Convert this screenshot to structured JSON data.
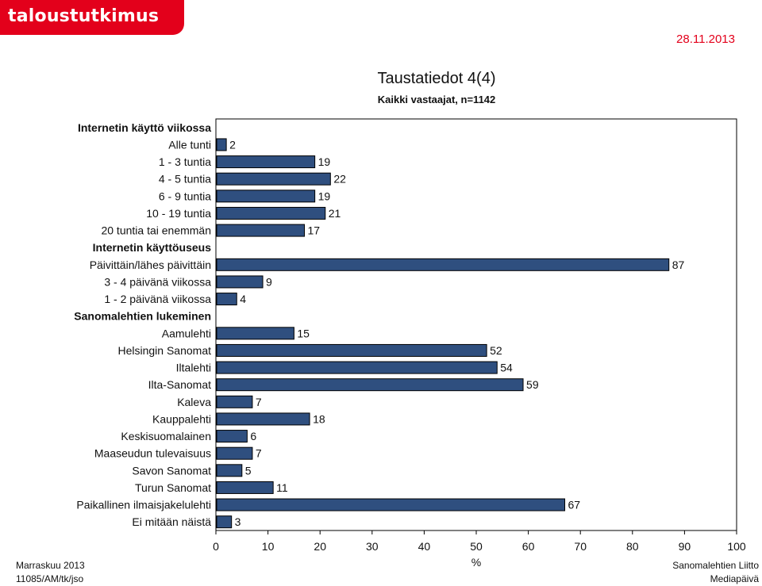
{
  "header": {
    "logo_text": "taloustutkimus oy",
    "date": "28.11.2013"
  },
  "footer": {
    "left_line1": "Marraskuu 2013",
    "left_line2": "11085/AM/tk/jso",
    "right_line1": "Sanomalehtien Liitto",
    "right_line2": "Mediapäivä"
  },
  "colors": {
    "bar_fill": "#2f4f7f",
    "bar_stroke": "#000000",
    "brand_red": "#e3001b"
  },
  "chart_data": {
    "type": "bar",
    "orientation": "horizontal",
    "title": "Taustatiedot 4(4)",
    "subtitle": "Kaikki vastaajat, n=1142",
    "xlabel": "%",
    "ylabel": "",
    "xlim": [
      0,
      100
    ],
    "xticks": [
      0,
      10,
      20,
      30,
      40,
      50,
      60,
      70,
      80,
      90,
      100
    ],
    "grid": false,
    "legend": "none",
    "data_labels": true,
    "rows": [
      {
        "label": "Internetin käyttö viikossa",
        "heading": true
      },
      {
        "label": "Alle tunti",
        "value": 2
      },
      {
        "label": "1 - 3 tuntia",
        "value": 19
      },
      {
        "label": "4 - 5 tuntia",
        "value": 22
      },
      {
        "label": "6 - 9 tuntia",
        "value": 19
      },
      {
        "label": "10 - 19 tuntia",
        "value": 21
      },
      {
        "label": "20 tuntia tai enemmän",
        "value": 17
      },
      {
        "label": "Internetin käyttöuseus",
        "heading": true
      },
      {
        "label": "Päivittäin/lähes päivittäin",
        "value": 87
      },
      {
        "label": "3 - 4 päivänä viikossa",
        "value": 9
      },
      {
        "label": "1 - 2 päivänä viikossa",
        "value": 4
      },
      {
        "label": "Sanomalehtien lukeminen",
        "heading": true
      },
      {
        "label": "Aamulehti",
        "value": 15
      },
      {
        "label": "Helsingin Sanomat",
        "value": 52
      },
      {
        "label": "Iltalehti",
        "value": 54
      },
      {
        "label": "Ilta-Sanomat",
        "value": 59
      },
      {
        "label": "Kaleva",
        "value": 7
      },
      {
        "label": "Kauppalehti",
        "value": 18
      },
      {
        "label": "Keskisuomalainen",
        "value": 6
      },
      {
        "label": "Maaseudun tulevaisuus",
        "value": 7
      },
      {
        "label": "Savon Sanomat",
        "value": 5
      },
      {
        "label": "Turun Sanomat",
        "value": 11
      },
      {
        "label": "Paikallinen ilmaisjakelulehti",
        "value": 67
      },
      {
        "label": "Ei mitään näistä",
        "value": 3
      }
    ]
  }
}
